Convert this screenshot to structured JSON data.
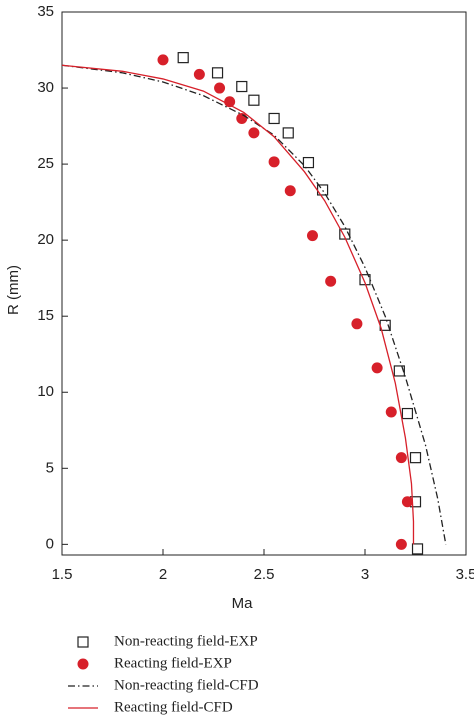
{
  "chart_data": {
    "type": "scatter",
    "x_label": "Ma",
    "y_label": "R (mm)",
    "xlim": [
      1.5,
      3.5
    ],
    "ylim": [
      -0.7,
      35
    ],
    "xticks": [
      1.5,
      2,
      2.5,
      3,
      3.5
    ],
    "yticks": [
      0,
      5,
      10,
      15,
      20,
      25,
      30,
      35
    ],
    "series": [
      {
        "name": "Non-reacting field-EXP",
        "marker": "square",
        "color": "#222222",
        "x": [
          2.1,
          2.27,
          2.39,
          2.45,
          2.55,
          2.62,
          2.72,
          2.79,
          2.9,
          3.0,
          3.1,
          3.17,
          3.21,
          3.25,
          3.25,
          3.26
        ],
        "values": [
          32.0,
          31.0,
          30.1,
          29.2,
          28.0,
          27.05,
          25.1,
          23.3,
          20.4,
          17.4,
          14.4,
          11.4,
          8.6,
          5.7,
          2.8,
          -0.3
        ]
      },
      {
        "name": "Reacting field-EXP",
        "marker": "circle",
        "color": "#d7202a",
        "x": [
          2.0,
          2.18,
          2.28,
          2.33,
          2.39,
          2.45,
          2.55,
          2.63,
          2.74,
          2.83,
          2.96,
          3.06,
          3.13,
          3.18,
          3.21,
          3.18
        ],
        "values": [
          31.85,
          30.9,
          30.0,
          29.1,
          28.0,
          27.05,
          25.15,
          23.25,
          20.3,
          17.3,
          14.5,
          11.6,
          8.7,
          5.7,
          2.8,
          0.0
        ]
      },
      {
        "name": "Non-reacting field-CFD",
        "marker": "line",
        "dash": "7 3 1.5 3",
        "color": "#222222",
        "x": [
          1.5,
          1.8,
          2.0,
          2.2,
          2.4,
          2.55,
          2.7,
          2.8,
          2.9,
          3.0,
          3.1,
          3.2,
          3.3,
          3.36,
          3.4
        ],
        "values": [
          31.5,
          31.0,
          30.4,
          29.5,
          28.2,
          26.9,
          24.9,
          23.1,
          20.9,
          18.2,
          15.0,
          11.0,
          6.5,
          3.0,
          0.0
        ]
      },
      {
        "name": "Reacting field-CFD",
        "marker": "line",
        "color": "#d7202a",
        "x": [
          1.5,
          1.8,
          2.0,
          2.2,
          2.4,
          2.55,
          2.7,
          2.8,
          2.9,
          3.0,
          3.08,
          3.15,
          3.2,
          3.23,
          3.24,
          3.24
        ],
        "values": [
          31.5,
          31.1,
          30.6,
          29.8,
          28.4,
          26.8,
          24.5,
          22.6,
          20.2,
          17.2,
          14.2,
          10.6,
          7.0,
          4.0,
          1.5,
          0.0
        ]
      }
    ]
  }
}
